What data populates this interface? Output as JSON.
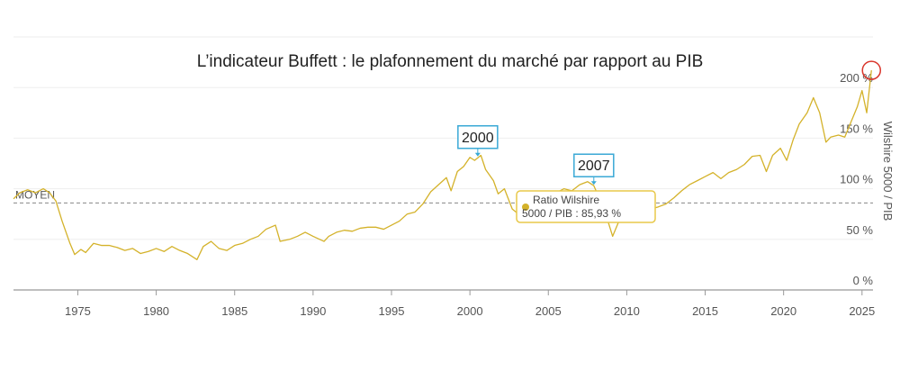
{
  "chart_data": {
    "type": "line",
    "title": "L’indicateur Buffett : le plafonnement du marché par rapport au PIB",
    "y_axis_label": "Wilshire 5000 / PIB",
    "color": "#d4b22a",
    "x": [
      1970.9,
      1971.3,
      1971.8,
      1972.3,
      1972.8,
      1973.2,
      1973.6,
      1974.0,
      1974.5,
      1974.8,
      1975.2,
      1975.5,
      1976.0,
      1976.5,
      1977.0,
      1977.5,
      1978.0,
      1978.5,
      1979.0,
      1979.5,
      1980.0,
      1980.5,
      1981.0,
      1981.5,
      1982.0,
      1982.6,
      1983.0,
      1983.5,
      1984.0,
      1984.5,
      1985.0,
      1985.5,
      1986.0,
      1986.5,
      1987.0,
      1987.6,
      1987.9,
      1988.5,
      1989.0,
      1989.5,
      1990.0,
      1990.7,
      1991.0,
      1991.5,
      1992.0,
      1992.5,
      1993.0,
      1993.5,
      1994.0,
      1994.5,
      1995.0,
      1995.5,
      1996.0,
      1996.5,
      1997.0,
      1997.5,
      1998.0,
      1998.5,
      1998.8,
      1999.2,
      1999.6,
      2000.0,
      2000.3,
      2000.7,
      2001.0,
      2001.5,
      2001.8,
      2002.2,
      2002.7,
      2003.1,
      2003.5,
      2004.0,
      2004.5,
      2005.0,
      2005.5,
      2006.0,
      2006.5,
      2007.0,
      2007.5,
      2007.9,
      2008.3,
      2008.7,
      2009.1,
      2009.5,
      2010.0,
      2010.5,
      2011.0,
      2011.5,
      2012.0,
      2012.5,
      2013.0,
      2013.5,
      2014.0,
      2014.5,
      2015.0,
      2015.5,
      2016.0,
      2016.5,
      2017.0,
      2017.5,
      2018.0,
      2018.5,
      2018.9,
      2019.3,
      2019.8,
      2020.2,
      2020.6,
      2021.0,
      2021.5,
      2021.9,
      2022.3,
      2022.7,
      2023.0,
      2023.5,
      2023.9,
      2024.3,
      2024.7,
      2025.0,
      2025.3,
      2025.6
    ],
    "values": [
      90,
      96,
      99,
      96,
      100,
      96,
      88,
      68,
      46,
      35,
      40,
      37,
      46,
      44,
      44,
      42,
      39,
      41,
      36,
      38,
      41,
      38,
      43,
      39,
      36,
      30,
      43,
      48,
      41,
      39,
      44,
      46,
      50,
      53,
      60,
      64,
      48,
      50,
      53,
      57,
      53,
      48,
      53,
      57,
      59,
      58,
      61,
      62,
      62,
      60,
      64,
      68,
      75,
      77,
      85,
      97,
      104,
      111,
      98,
      117,
      122,
      131,
      128,
      133,
      119,
      108,
      95,
      100,
      80,
      75,
      86,
      95,
      92,
      95,
      96,
      100,
      98,
      104,
      107,
      103,
      89,
      73,
      53,
      68,
      76,
      75,
      84,
      80,
      82,
      85,
      91,
      98,
      104,
      108,
      112,
      116,
      110,
      116,
      119,
      124,
      132,
      133,
      117,
      133,
      140,
      128,
      148,
      164,
      175,
      190,
      175,
      146,
      151,
      153,
      151,
      166,
      181,
      197,
      175,
      217
    ],
    "xlim": [
      1970.9,
      2025.7
    ],
    "xticks": [
      1975,
      1980,
      1985,
      1990,
      1995,
      2000,
      2005,
      2010,
      2015,
      2020,
      2025
    ],
    "ylim": [
      0,
      250
    ],
    "yticks": [
      {
        "value": 0,
        "label": "0 %"
      },
      {
        "value": 50,
        "label": "50 %"
      },
      {
        "value": 100,
        "label": "100 %"
      },
      {
        "value": 150,
        "label": "150 %"
      },
      {
        "value": 200,
        "label": "200 %"
      }
    ],
    "grid": true,
    "mean": {
      "label": "MOYEN",
      "value": 85.93
    },
    "annotations": [
      {
        "text": "2000",
        "x": 2000.5,
        "y": 131
      },
      {
        "text": "2007",
        "x": 2007.9,
        "y": 103
      }
    ],
    "tooltip": [
      "Ratio Wilshire",
      "5000 / PIB : 85,93 %"
    ]
  }
}
